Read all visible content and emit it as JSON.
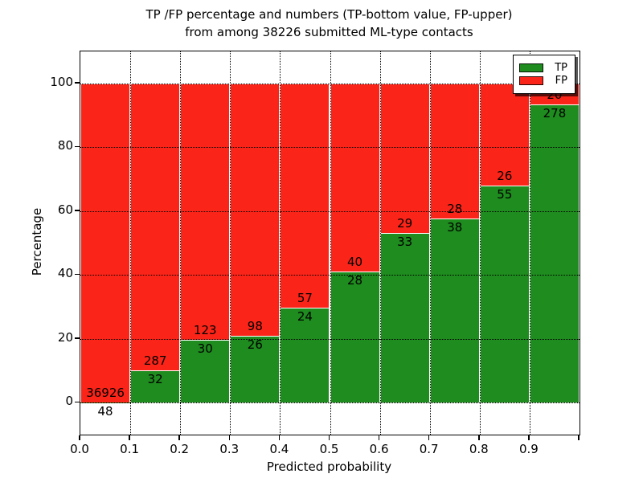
{
  "chart_data": {
    "type": "bar",
    "stacked": true,
    "orientation": "vertical",
    "title_line1": "TP /FP percentage and numbers (TP-bottom value, FP-upper)",
    "title_line2": "from among 38226 submitted ML-type contacts",
    "xlabel": "Predicted probability",
    "ylabel": "Percentage",
    "total_contacts": 38226,
    "categories": [
      "0.0-0.1",
      "0.1-0.2",
      "0.2-0.3",
      "0.3-0.4",
      "0.4-0.5",
      "0.5-0.6",
      "0.6-0.7",
      "0.7-0.8",
      "0.8-0.9",
      "0.9-1.0"
    ],
    "series": [
      {
        "name": "TP",
        "color": "#1e8c1e",
        "position": "bottom",
        "values": [
          48,
          32,
          30,
          26,
          24,
          28,
          33,
          38,
          55,
          278
        ]
      },
      {
        "name": "FP",
        "color": "#fb2419",
        "position": "top",
        "values": [
          36926,
          287,
          123,
          98,
          57,
          40,
          29,
          28,
          26,
          20
        ]
      }
    ],
    "bar_display": "percentage of bin total, stacked to 100%",
    "x_tick_labels": [
      "0.0",
      "0.1",
      "0.2",
      "0.3",
      "0.4",
      "0.5",
      "0.6",
      "0.7",
      "0.8",
      "0.9"
    ],
    "y_tick_values": [
      0,
      20,
      40,
      60,
      80,
      100
    ],
    "xlim": [
      0.0,
      1.0
    ],
    "ylim": [
      -10,
      110
    ],
    "grid": true,
    "grid_style": "dotted black",
    "bar_edge_color": "#ffffff",
    "legend": {
      "position": "upper right",
      "entries": [
        "TP",
        "FP"
      ]
    }
  }
}
